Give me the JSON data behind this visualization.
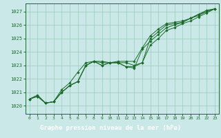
{
  "title": "Graphe pression niveau de la mer (hPa)",
  "bg_color": "#cbe8e8",
  "plot_bg_color": "#cbe8e8",
  "grid_color": "#99ccbb",
  "line_color": "#1a6b2a",
  "marker_color": "#1a6b2a",
  "label_bar_color": "#2d7a3a",
  "label_text_color": "#ffffff",
  "xlim": [
    -0.5,
    23.5
  ],
  "ylim": [
    1019.4,
    1027.6
  ],
  "yticks": [
    1020,
    1021,
    1022,
    1023,
    1024,
    1025,
    1026,
    1027
  ],
  "xticks": [
    0,
    1,
    2,
    3,
    4,
    5,
    6,
    7,
    8,
    9,
    10,
    11,
    12,
    13,
    14,
    15,
    16,
    17,
    18,
    19,
    20,
    21,
    22,
    23
  ],
  "series": [
    [
      1020.5,
      1020.7,
      1020.2,
      1020.3,
      1021.0,
      1021.5,
      1021.8,
      1023.0,
      1023.3,
      1023.0,
      1023.2,
      1023.2,
      1023.2,
      1023.0,
      1023.2,
      1025.0,
      1025.5,
      1026.0,
      1026.1,
      1026.2,
      1026.5,
      1026.7,
      1027.0,
      1027.2
    ],
    [
      1020.5,
      1020.7,
      1020.2,
      1020.3,
      1021.0,
      1021.5,
      1021.8,
      1023.0,
      1023.3,
      1023.0,
      1023.2,
      1023.2,
      1022.9,
      1022.8,
      1024.2,
      1024.8,
      1025.3,
      1025.8,
      1026.0,
      1026.2,
      1026.5,
      1026.8,
      1027.0,
      1027.2
    ],
    [
      1020.5,
      1020.7,
      1020.2,
      1020.3,
      1021.0,
      1021.5,
      1021.8,
      1023.0,
      1023.3,
      1023.2,
      1023.2,
      1023.2,
      1022.9,
      1022.9,
      1023.2,
      1024.5,
      1025.0,
      1025.6,
      1025.8,
      1026.1,
      1026.3,
      1026.6,
      1026.9,
      1027.2
    ],
    [
      1020.5,
      1020.8,
      1020.2,
      1020.3,
      1021.2,
      1021.7,
      1022.5,
      1023.2,
      1023.3,
      1023.3,
      1023.2,
      1023.3,
      1023.3,
      1023.3,
      1024.3,
      1025.2,
      1025.7,
      1026.1,
      1026.2,
      1026.3,
      1026.5,
      1026.8,
      1027.1,
      1027.2
    ]
  ]
}
